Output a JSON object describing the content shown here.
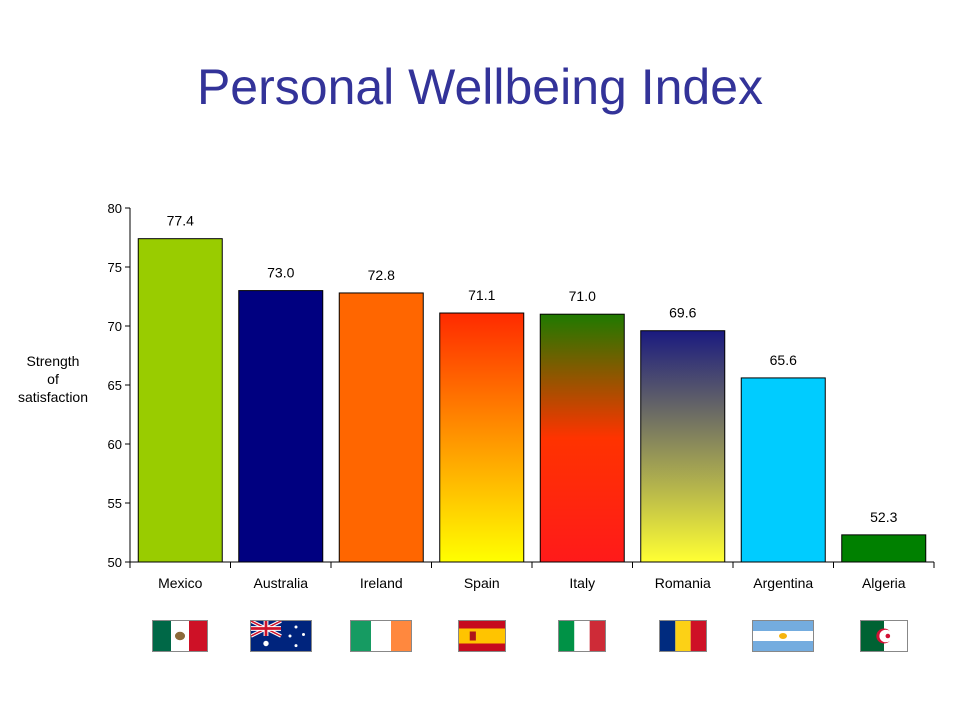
{
  "title": "Personal Wellbeing Index",
  "chart_data": {
    "type": "bar",
    "title": "Personal Wellbeing Index",
    "ylabel": [
      "Strength",
      "of",
      "satisfaction"
    ],
    "xlabel": "",
    "ylim": [
      50,
      80
    ],
    "yticks": [
      50,
      55,
      60,
      65,
      70,
      75,
      80
    ],
    "categories": [
      "Mexico",
      "Australia",
      "Ireland",
      "Spain",
      "Italy",
      "Romania",
      "Argentina",
      "Algeria"
    ],
    "values": [
      77.4,
      73.0,
      72.8,
      71.1,
      71.0,
      69.6,
      65.6,
      52.3
    ],
    "value_labels": [
      "77.4",
      "73.0",
      "72.8",
      "71.1",
      "71.0",
      "69.6",
      "65.6",
      "52.3"
    ],
    "bar_styles": [
      {
        "type": "solid",
        "colors": [
          "#99cc00"
        ]
      },
      {
        "type": "solid",
        "colors": [
          "#000080"
        ]
      },
      {
        "type": "solid",
        "colors": [
          "#ff6600"
        ]
      },
      {
        "type": "gradient",
        "colors": [
          "#ff2a00",
          "#ffff00"
        ]
      },
      {
        "type": "gradient",
        "colors": [
          "#1f7a00",
          "#ff3300",
          "#ff1a1a"
        ]
      },
      {
        "type": "gradient",
        "colors": [
          "#1a1a80",
          "#ffff33"
        ]
      },
      {
        "type": "solid",
        "colors": [
          "#00ccff"
        ]
      },
      {
        "type": "solid",
        "colors": [
          "#008000"
        ]
      }
    ],
    "grid": false,
    "legend": "none"
  },
  "flags": [
    {
      "country": "Mexico",
      "icon": "mexico-flag-icon"
    },
    {
      "country": "Australia",
      "icon": "australia-flag-icon"
    },
    {
      "country": "Ireland",
      "icon": "ireland-flag-icon"
    },
    {
      "country": "Spain",
      "icon": "spain-flag-icon"
    },
    {
      "country": "Italy",
      "icon": "italy-flag-icon"
    },
    {
      "country": "Romania",
      "icon": "romania-flag-icon"
    },
    {
      "country": "Argentina",
      "icon": "argentina-flag-icon"
    },
    {
      "country": "Algeria",
      "icon": "algeria-flag-icon"
    }
  ]
}
